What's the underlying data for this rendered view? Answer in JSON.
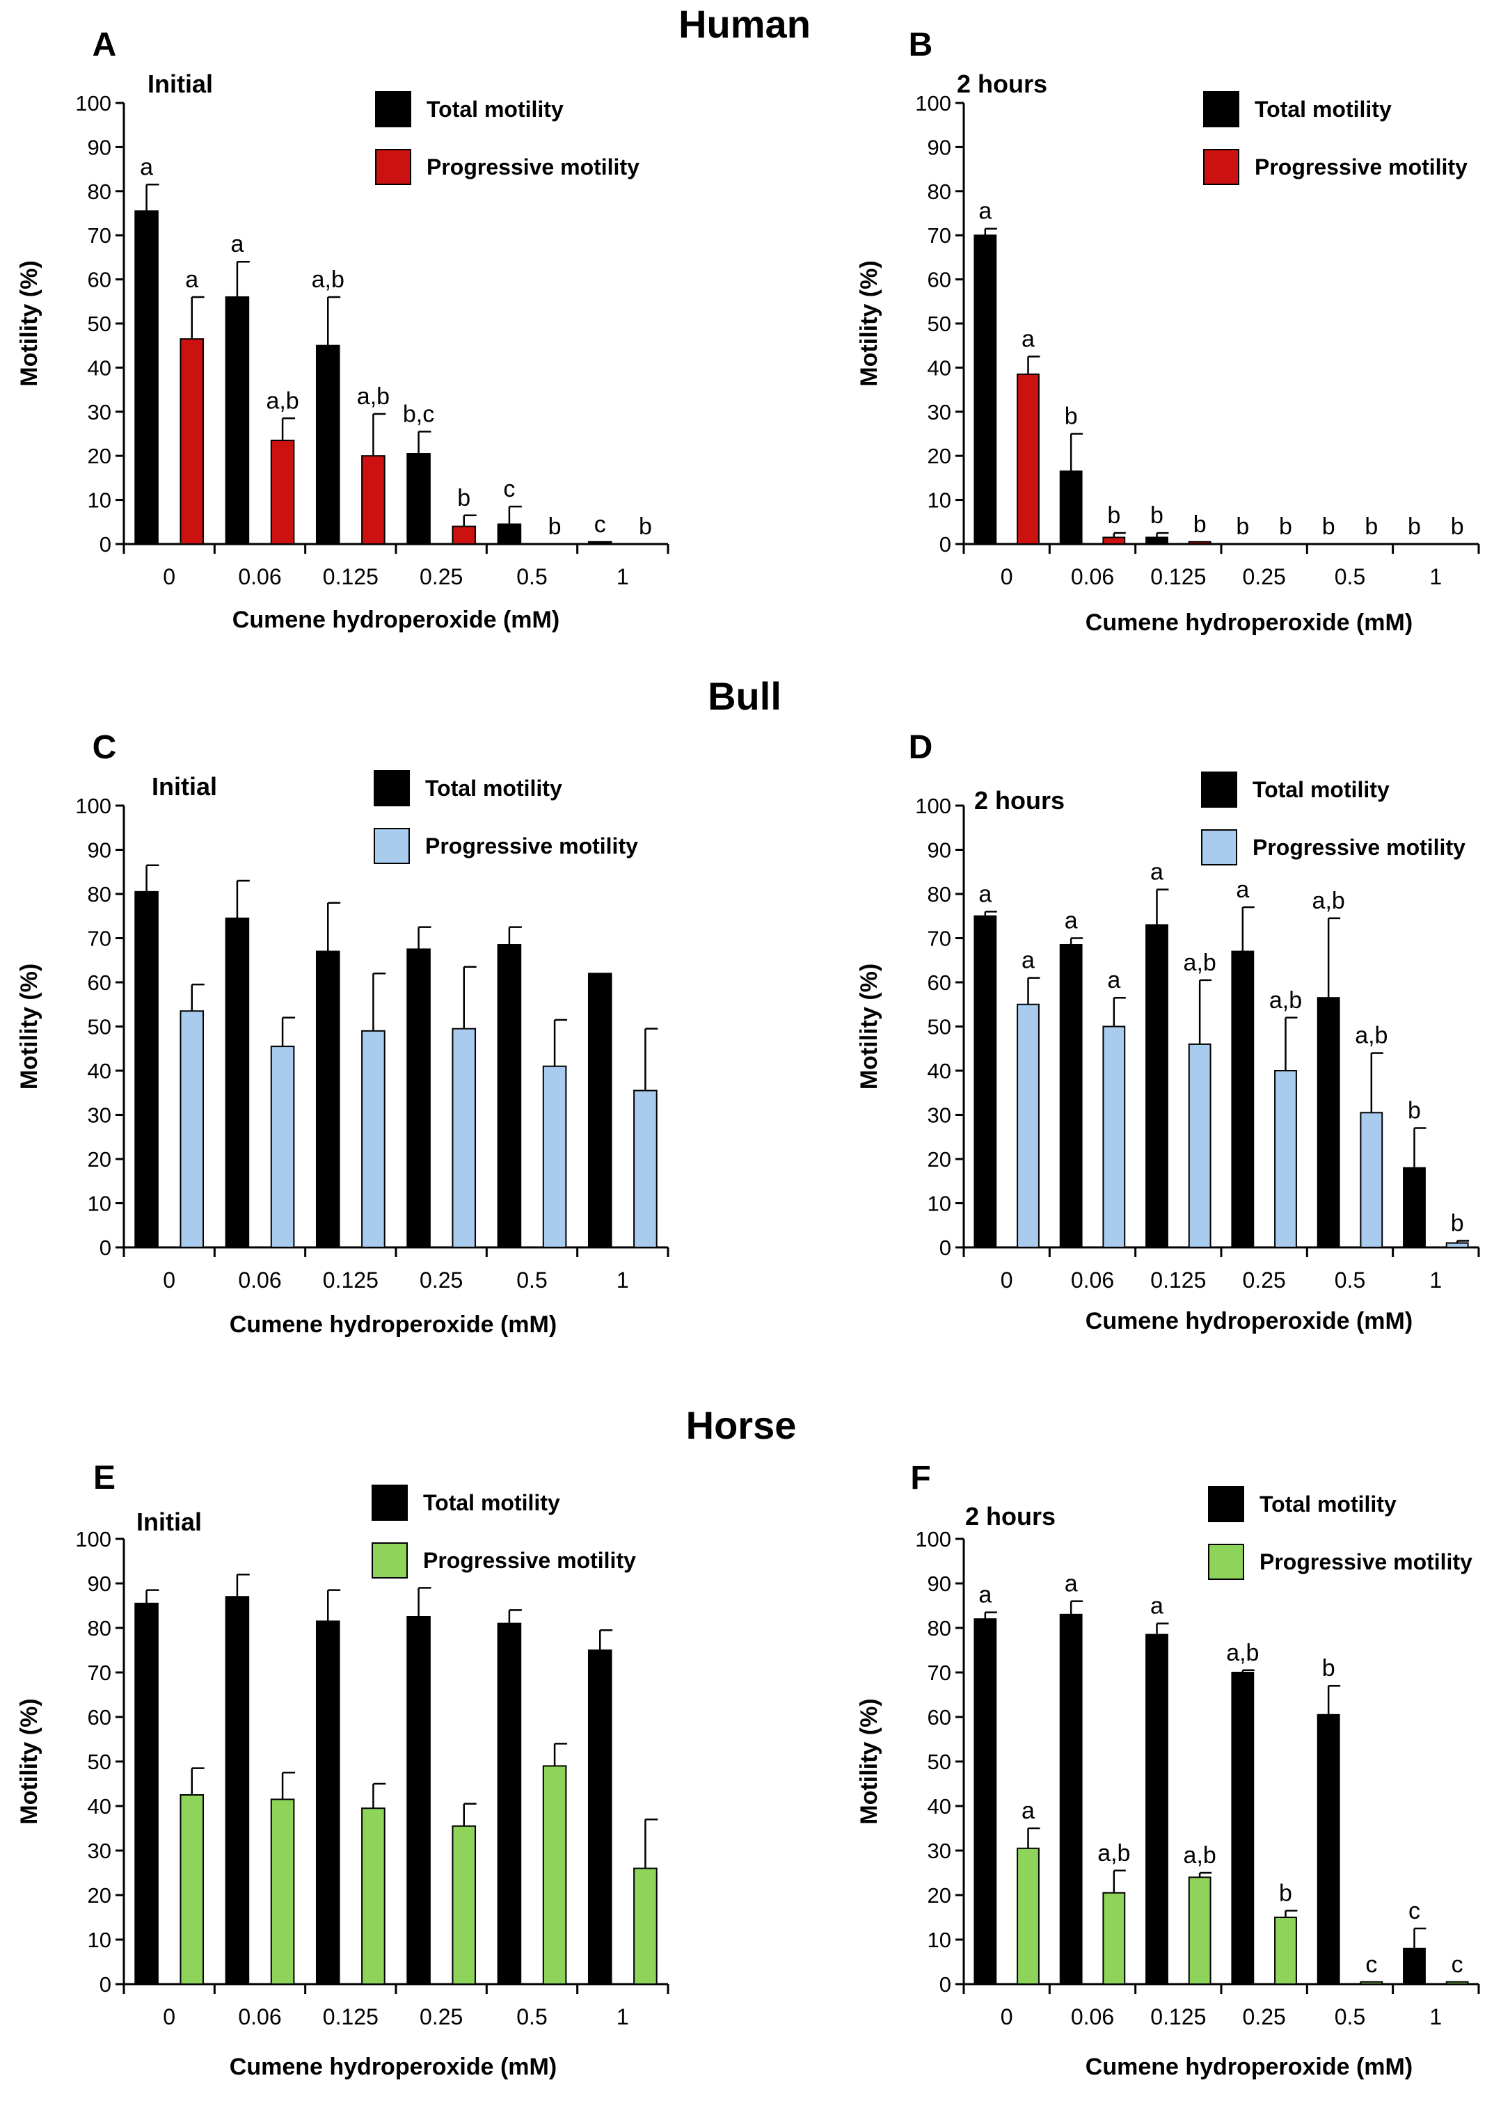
{
  "figure": {
    "row_titles": [
      "Human",
      "Bull",
      "Horse"
    ]
  },
  "colors": {
    "total": "#000000",
    "human_progressive": "#cc1111",
    "bull_progressive": "#a9cbee",
    "horse_progressive": "#8ed35a"
  },
  "chart_data": [
    {
      "type": "bar",
      "panel": "A",
      "title": "Initial",
      "xlabel": "Cumene hydroperoxide (mM)",
      "ylabel": "Motility (%)",
      "ylim": [
        0,
        100
      ],
      "yticks": [
        0,
        10,
        20,
        30,
        40,
        50,
        60,
        70,
        80,
        90,
        100
      ],
      "categories": [
        "0",
        "0.06",
        "0.125",
        "0.25",
        "0.5",
        "1"
      ],
      "legend_position": "top-right",
      "series": [
        {
          "name": "Total motility",
          "color": "#000000",
          "values": [
            75.5,
            56,
            45,
            20.5,
            4.5,
            0.5
          ],
          "errors": [
            6,
            8,
            11,
            5,
            4,
            0
          ],
          "labels": [
            "a",
            "a",
            "a,b",
            "b,c",
            "c",
            "c"
          ]
        },
        {
          "name": "Progressive motility",
          "color": "#cc1111",
          "values": [
            46.5,
            23.5,
            20,
            4,
            0,
            0
          ],
          "errors": [
            9.5,
            5,
            9.5,
            2.5,
            0,
            0
          ],
          "labels": [
            "a",
            "a,b",
            "a,b",
            "b",
            "b",
            "b"
          ]
        }
      ]
    },
    {
      "type": "bar",
      "panel": "B",
      "title": "2 hours",
      "xlabel": "Cumene hydroperoxide (mM)",
      "ylabel": "Motility (%)",
      "ylim": [
        0,
        100
      ],
      "yticks": [
        0,
        10,
        20,
        30,
        40,
        50,
        60,
        70,
        80,
        90,
        100
      ],
      "categories": [
        "0",
        "0.06",
        "0.125",
        "0.25",
        "0.5",
        "1"
      ],
      "legend_position": "top-right",
      "series": [
        {
          "name": "Total motility",
          "color": "#000000",
          "values": [
            70,
            16.5,
            1.5,
            0,
            0,
            0
          ],
          "errors": [
            1.5,
            8.5,
            1,
            0,
            0,
            0
          ],
          "labels": [
            "a",
            "b",
            "b",
            "b",
            "b",
            "b"
          ]
        },
        {
          "name": "Progressive motility",
          "color": "#cc1111",
          "values": [
            38.5,
            1.5,
            0.5,
            0,
            0,
            0
          ],
          "errors": [
            4,
            1,
            0,
            0,
            0,
            0
          ],
          "labels": [
            "a",
            "b",
            "b",
            "b",
            "b",
            "b"
          ]
        }
      ]
    },
    {
      "type": "bar",
      "panel": "C",
      "title": "Initial",
      "xlabel": "Cumene hydroperoxide (mM)",
      "ylabel": "Motility (%)",
      "ylim": [
        0,
        100
      ],
      "yticks": [
        0,
        10,
        20,
        30,
        40,
        50,
        60,
        70,
        80,
        90,
        100
      ],
      "categories": [
        "0",
        "0.06",
        "0.125",
        "0.25",
        "0.5",
        "1"
      ],
      "legend_position": "top-right",
      "series": [
        {
          "name": "Total motility",
          "color": "#000000",
          "values": [
            80.5,
            74.5,
            67,
            67.5,
            68.5,
            62
          ],
          "errors": [
            6,
            8.5,
            11,
            5,
            4,
            0
          ],
          "labels": [
            "",
            "",
            "",
            "",
            "",
            ""
          ]
        },
        {
          "name": "Progressive motility",
          "color": "#a9cbee",
          "values": [
            53.5,
            45.5,
            49,
            49.5,
            41,
            35.5
          ],
          "errors": [
            6,
            6.5,
            13,
            14,
            10.5,
            14
          ],
          "labels": [
            "",
            "",
            "",
            "",
            "",
            ""
          ]
        }
      ]
    },
    {
      "type": "bar",
      "panel": "D",
      "title": "2 hours",
      "xlabel": "Cumene hydroperoxide (mM)",
      "ylabel": "Motility (%)",
      "ylim": [
        0,
        100
      ],
      "yticks": [
        0,
        10,
        20,
        30,
        40,
        50,
        60,
        70,
        80,
        90,
        100
      ],
      "categories": [
        "0",
        "0.06",
        "0.125",
        "0.25",
        "0.5",
        "1"
      ],
      "legend_position": "top-right",
      "series": [
        {
          "name": "Total motility",
          "color": "#000000",
          "values": [
            75,
            68.5,
            73,
            67,
            56.5,
            18
          ],
          "errors": [
            1,
            1.5,
            8,
            10,
            18,
            9
          ],
          "labels": [
            "a",
            "a",
            "a",
            "a",
            "a,b",
            "b"
          ]
        },
        {
          "name": "Progressive motility",
          "color": "#a9cbee",
          "values": [
            55,
            50,
            46,
            40,
            30.5,
            1
          ],
          "errors": [
            6,
            6.5,
            14.5,
            12,
            13.5,
            0.5
          ],
          "labels": [
            "a",
            "a",
            "a,b",
            "a,b",
            "a,b",
            "b"
          ]
        }
      ]
    },
    {
      "type": "bar",
      "panel": "E",
      "title": "Initial",
      "xlabel": "Cumene hydroperoxide (mM)",
      "ylabel": "Motility (%)",
      "ylim": [
        0,
        100
      ],
      "yticks": [
        0,
        10,
        20,
        30,
        40,
        50,
        60,
        70,
        80,
        90,
        100
      ],
      "categories": [
        "0",
        "0.06",
        "0.125",
        "0.25",
        "0.5",
        "1"
      ],
      "legend_position": "top-right",
      "series": [
        {
          "name": "Total motility",
          "color": "#000000",
          "values": [
            85.5,
            87,
            81.5,
            82.5,
            81,
            75
          ],
          "errors": [
            3,
            5,
            7,
            6.5,
            3,
            4.5
          ],
          "labels": [
            "",
            "",
            "",
            "",
            "",
            ""
          ]
        },
        {
          "name": "Progressive motility",
          "color": "#8ed35a",
          "values": [
            42.5,
            41.5,
            39.5,
            35.5,
            49,
            26
          ],
          "errors": [
            6,
            6,
            5.5,
            5,
            5,
            11
          ],
          "labels": [
            "",
            "",
            "",
            "",
            "",
            ""
          ]
        }
      ]
    },
    {
      "type": "bar",
      "panel": "F",
      "title": "2 hours",
      "xlabel": "Cumene hydroperoxide (mM)",
      "ylabel": "Motility (%)",
      "ylim": [
        0,
        100
      ],
      "yticks": [
        0,
        10,
        20,
        30,
        40,
        50,
        60,
        70,
        80,
        90,
        100
      ],
      "categories": [
        "0",
        "0.06",
        "0.125",
        "0.25",
        "0.5",
        "1"
      ],
      "legend_position": "top-right",
      "series": [
        {
          "name": "Total motility",
          "color": "#000000",
          "values": [
            82,
            83,
            78.5,
            70,
            60.5,
            8
          ],
          "errors": [
            1.5,
            3,
            2.5,
            0.5,
            6.5,
            4.5
          ],
          "labels": [
            "a",
            "a",
            "a",
            "a,b",
            "b",
            "c"
          ]
        },
        {
          "name": "Progressive motility",
          "color": "#8ed35a",
          "values": [
            30.5,
            20.5,
            24,
            15,
            0.5,
            0.5
          ],
          "errors": [
            4.5,
            5,
            1,
            1.5,
            0,
            0
          ],
          "labels": [
            "a",
            "a,b",
            "a,b",
            "b",
            "c",
            "c"
          ]
        }
      ]
    }
  ]
}
